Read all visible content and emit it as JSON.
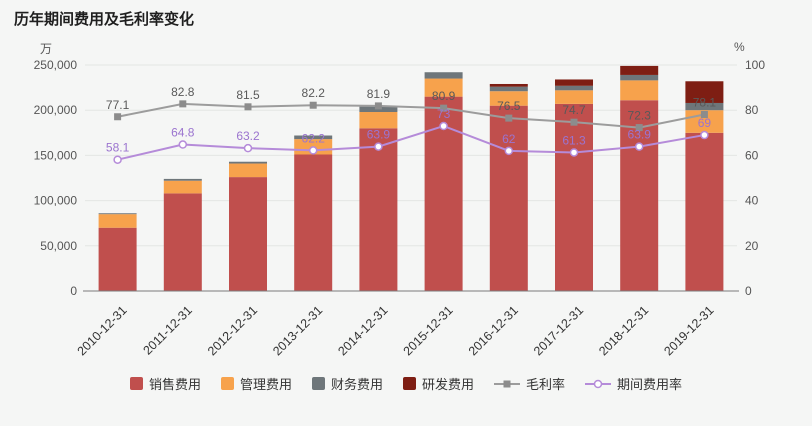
{
  "title": "历年期间费用及毛利率变化",
  "axes": {
    "left_unit": "万",
    "right_unit": "%"
  },
  "chart_data": {
    "type": "bar",
    "subtype": "stacked-bar-with-lines",
    "categories": [
      "2010-12-31",
      "2011-12-31",
      "2012-12-31",
      "2013-12-31",
      "2014-12-31",
      "2015-12-31",
      "2016-12-31",
      "2017-12-31",
      "2018-12-31",
      "2019-12-31"
    ],
    "bar_series": [
      {
        "name": "销售费用",
        "color": "#c04f4d",
        "values": [
          70000,
          108000,
          126000,
          151000,
          180000,
          215000,
          205000,
          207000,
          211000,
          175000
        ]
      },
      {
        "name": "管理费用",
        "color": "#f7a24c",
        "values": [
          15000,
          14000,
          15000,
          17000,
          18000,
          20000,
          16000,
          15000,
          22000,
          25000
        ]
      },
      {
        "name": "财务费用",
        "color": "#6e767a",
        "values": [
          1000,
          2000,
          2000,
          4000,
          6000,
          7000,
          5000,
          5000,
          6000,
          8000
        ]
      },
      {
        "name": "研发费用",
        "color": "#7e1e13",
        "values": [
          0,
          0,
          0,
          0,
          0,
          0,
          3000,
          7000,
          10000,
          24000
        ]
      }
    ],
    "line_series": [
      {
        "name": "毛利率",
        "color": "#9c9c9c",
        "marker": "square",
        "label_color": "#595959",
        "values": [
          77.1,
          82.8,
          81.5,
          82.2,
          81.9,
          80.9,
          76.5,
          74.7,
          72.3,
          78.1
        ]
      },
      {
        "name": "期间费用率",
        "color": "#b58bd9",
        "marker": "circle",
        "label_color": "#9b74cf",
        "values": [
          58.1,
          64.8,
          63.2,
          62.2,
          63.9,
          73,
          62,
          61.3,
          63.9,
          69
        ]
      }
    ],
    "left_axis": {
      "min": 0,
      "max": 250000,
      "tick_values": [
        0,
        50000,
        100000,
        150000,
        200000,
        250000
      ],
      "tick_labels": [
        "0",
        "50,000",
        "100,000",
        "150,000",
        "200,000",
        "250,000"
      ]
    },
    "right_axis": {
      "min": 0,
      "max": 100,
      "tick_values": [
        0,
        20,
        40,
        60,
        80,
        100
      ],
      "tick_labels": [
        "0",
        "20",
        "40",
        "60",
        "80",
        "100"
      ]
    },
    "grid": true,
    "legend_position": "bottom"
  }
}
